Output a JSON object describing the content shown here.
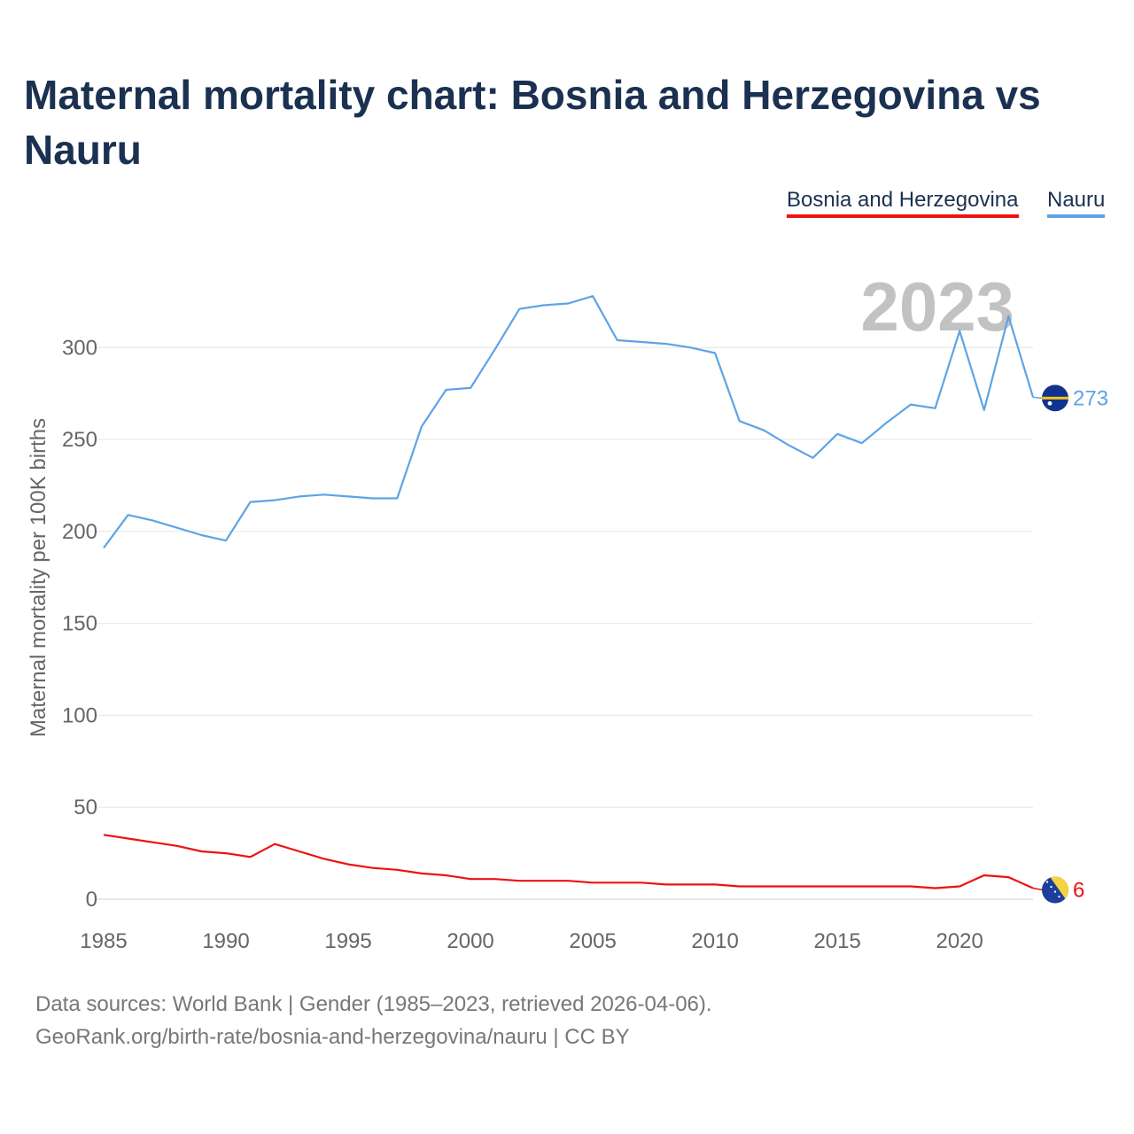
{
  "title": "Maternal mortality chart: Bosnia and Herzegovina vs Nauru",
  "legend": [
    "Bosnia and Herzegovina",
    "Nauru"
  ],
  "footer": {
    "source": "Data sources: World Bank | Gender (1985–2023, retrieved 2026-04-06).",
    "credit": "GeoRank.org/birth-rate/bosnia-and-herzegovina/nauru | CC BY"
  },
  "chart_data": {
    "type": "line",
    "title": "Maternal mortality chart: Bosnia and Herzegovina vs Nauru",
    "xlabel": "",
    "ylabel": "Maternal mortality per 100K births",
    "current_year": "2023",
    "xlim": [
      1985,
      2023
    ],
    "ylim": [
      0,
      330
    ],
    "xticks": [
      1985,
      1990,
      1995,
      2000,
      2005,
      2010,
      2015,
      2020
    ],
    "yticks": [
      0,
      50,
      100,
      150,
      200,
      250,
      300
    ],
    "grid": true,
    "legend_position": "top-right",
    "x": [
      1985,
      1986,
      1987,
      1988,
      1989,
      1990,
      1991,
      1992,
      1993,
      1994,
      1995,
      1996,
      1997,
      1998,
      1999,
      2000,
      2001,
      2002,
      2003,
      2004,
      2005,
      2006,
      2007,
      2008,
      2009,
      2010,
      2011,
      2012,
      2013,
      2014,
      2015,
      2016,
      2017,
      2018,
      2019,
      2020,
      2021,
      2022,
      2023
    ],
    "series": [
      {
        "name": "Bosnia and Herzegovina",
        "color": "#ee1111",
        "flag": "bosnia-flag",
        "end_label": "6",
        "values": [
          35,
          33,
          31,
          29,
          26,
          25,
          23,
          30,
          26,
          22,
          19,
          17,
          16,
          14,
          13,
          11,
          11,
          10,
          10,
          10,
          9,
          9,
          9,
          8,
          8,
          8,
          7,
          7,
          7,
          7,
          7,
          7,
          7,
          7,
          6,
          7,
          13,
          12,
          6
        ]
      },
      {
        "name": "Nauru",
        "color": "#5da4e6",
        "flag": "nauru-flag",
        "end_label": "273",
        "values": [
          191,
          209,
          206,
          202,
          198,
          195,
          216,
          217,
          219,
          220,
          219,
          218,
          218,
          257,
          277,
          278,
          299,
          321,
          323,
          324,
          328,
          304,
          303,
          302,
          300,
          297,
          260,
          255,
          247,
          240,
          253,
          248,
          259,
          269,
          267,
          309,
          266,
          317,
          273
        ]
      }
    ]
  }
}
